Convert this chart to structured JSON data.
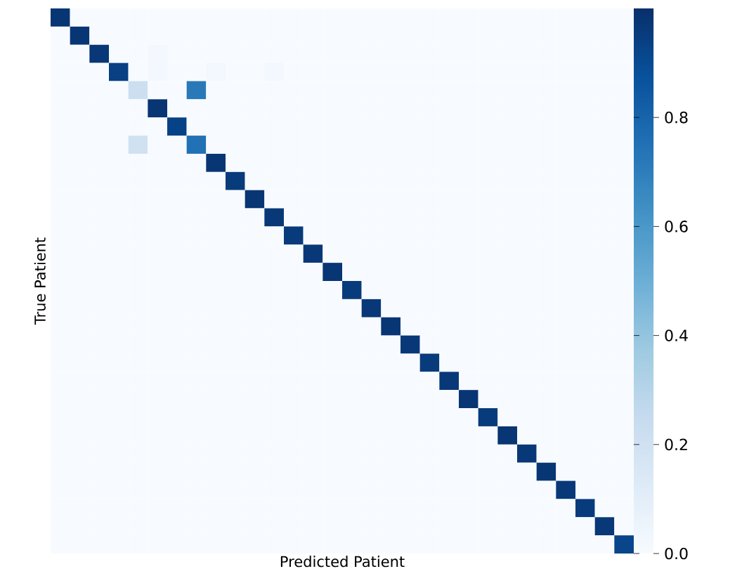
{
  "chart_data": {
    "type": "heatmap",
    "xlabel": "Predicted Patient",
    "ylabel": "True Patient",
    "categories": [
      null,
      null,
      null,
      null,
      null,
      null,
      null,
      null,
      null,
      null,
      null,
      null,
      null,
      null,
      null,
      null,
      null,
      null,
      null,
      null,
      null,
      null,
      null,
      null,
      null,
      null,
      null,
      null,
      null,
      null
    ],
    "y_categories": [
      null,
      null,
      null,
      null,
      null,
      null,
      null,
      null,
      null,
      null,
      null,
      null,
      null,
      null,
      null,
      null,
      null,
      null,
      null,
      null,
      null,
      null,
      null,
      null,
      null,
      null,
      null,
      null,
      null,
      null
    ],
    "tick_labels": false,
    "clim": [
      0,
      1
    ],
    "cticks": [
      {
        "value": 0,
        "label": "0.0"
      },
      {
        "value": 0.2,
        "label": "0.2"
      },
      {
        "value": 0.4,
        "label": "0.4"
      },
      {
        "value": 0.6,
        "label": "0.6"
      },
      {
        "value": 0.8,
        "label": "0.8"
      }
    ],
    "cells": [
      [
        0.98,
        0,
        0,
        0,
        0,
        0,
        0,
        0,
        0,
        0,
        0,
        0,
        0,
        0,
        0,
        0,
        0,
        0,
        0,
        0,
        0,
        0,
        0,
        0,
        0,
        0,
        0,
        0,
        0,
        0
      ],
      [
        0,
        0.98,
        0,
        0,
        0,
        0,
        0,
        0,
        0,
        0,
        0,
        0,
        0,
        0,
        0,
        0,
        0,
        0,
        0,
        0,
        0,
        0,
        0,
        0,
        0,
        0,
        0,
        0,
        0,
        0
      ],
      [
        0,
        0,
        0.97,
        0,
        0,
        0.02,
        0,
        0,
        0,
        0,
        0,
        0,
        0,
        0,
        0,
        0,
        0,
        0,
        0,
        0,
        0,
        0,
        0,
        0,
        0,
        0,
        0,
        0,
        0,
        0
      ],
      [
        0,
        0,
        0,
        0.94,
        0,
        0.02,
        0,
        0,
        0.02,
        0,
        0,
        0.02,
        0,
        0,
        0,
        0,
        0,
        0,
        0,
        0,
        0,
        0,
        0,
        0,
        0,
        0,
        0,
        0,
        0,
        0
      ],
      [
        0,
        0,
        0,
        0,
        0.22,
        0,
        0,
        0.72,
        0,
        0,
        0,
        0,
        0,
        0,
        0,
        0,
        0,
        0,
        0,
        0,
        0,
        0,
        0,
        0,
        0,
        0,
        0,
        0,
        0,
        0
      ],
      [
        0,
        0,
        0,
        0,
        0,
        0.98,
        0,
        0,
        0,
        0,
        0,
        0,
        0,
        0,
        0,
        0,
        0,
        0,
        0,
        0,
        0,
        0,
        0,
        0,
        0,
        0,
        0,
        0,
        0,
        0
      ],
      [
        0,
        0,
        0,
        0,
        0,
        0,
        0.93,
        0,
        0,
        0,
        0,
        0,
        0,
        0,
        0,
        0,
        0,
        0,
        0,
        0,
        0,
        0,
        0,
        0,
        0,
        0,
        0,
        0,
        0,
        0
      ],
      [
        0,
        0,
        0,
        0,
        0.2,
        0,
        0,
        0.75,
        0,
        0,
        0,
        0,
        0,
        0,
        0,
        0,
        0,
        0,
        0,
        0,
        0,
        0,
        0,
        0,
        0,
        0,
        0,
        0,
        0,
        0
      ],
      [
        0,
        0,
        0,
        0,
        0,
        0,
        0,
        0,
        0.98,
        0,
        0,
        0,
        0,
        0,
        0,
        0,
        0,
        0,
        0,
        0,
        0,
        0,
        0,
        0,
        0,
        0,
        0,
        0,
        0,
        0
      ],
      [
        0,
        0,
        0,
        0,
        0,
        0,
        0,
        0,
        0,
        0.96,
        0,
        0,
        0,
        0,
        0,
        0,
        0,
        0,
        0,
        0,
        0,
        0,
        0,
        0,
        0,
        0,
        0,
        0,
        0,
        0
      ],
      [
        0,
        0,
        0,
        0,
        0,
        0,
        0,
        0,
        0,
        0,
        0.98,
        0,
        0,
        0,
        0,
        0,
        0,
        0,
        0,
        0,
        0,
        0,
        0,
        0,
        0,
        0,
        0,
        0,
        0,
        0
      ],
      [
        0,
        0,
        0,
        0,
        0,
        0,
        0,
        0,
        0,
        0,
        0,
        0.97,
        0,
        0,
        0,
        0,
        0,
        0,
        0,
        0,
        0,
        0,
        0,
        0,
        0,
        0,
        0,
        0,
        0,
        0
      ],
      [
        0,
        0,
        0,
        0,
        0,
        0,
        0,
        0,
        0,
        0,
        0,
        0,
        0.96,
        0,
        0,
        0,
        0,
        0,
        0,
        0,
        0,
        0,
        0,
        0,
        0,
        0,
        0,
        0,
        0,
        0
      ],
      [
        0,
        0,
        0,
        0,
        0,
        0,
        0,
        0,
        0,
        0,
        0,
        0,
        0,
        0.97,
        0,
        0,
        0,
        0,
        0,
        0,
        0,
        0,
        0,
        0,
        0,
        0,
        0,
        0,
        0,
        0
      ],
      [
        0,
        0,
        0,
        0,
        0,
        0,
        0,
        0,
        0,
        0,
        0,
        0,
        0,
        0,
        0.98,
        0,
        0,
        0,
        0,
        0,
        0,
        0,
        0,
        0,
        0,
        0,
        0,
        0,
        0,
        0
      ],
      [
        0,
        0,
        0,
        0,
        0,
        0,
        0,
        0,
        0,
        0,
        0,
        0,
        0,
        0,
        0,
        0.96,
        0,
        0,
        0,
        0,
        0,
        0,
        0,
        0,
        0,
        0,
        0,
        0,
        0,
        0
      ],
      [
        0,
        0,
        0,
        0,
        0,
        0,
        0,
        0,
        0,
        0,
        0,
        0,
        0,
        0,
        0,
        0,
        0.97,
        0,
        0,
        0,
        0,
        0,
        0,
        0,
        0,
        0,
        0,
        0,
        0,
        0
      ],
      [
        0,
        0,
        0,
        0,
        0,
        0,
        0,
        0,
        0,
        0,
        0,
        0,
        0,
        0,
        0,
        0,
        0,
        0.98,
        0,
        0,
        0,
        0,
        0,
        0,
        0,
        0,
        0,
        0,
        0,
        0
      ],
      [
        0,
        0,
        0,
        0,
        0,
        0,
        0,
        0,
        0,
        0,
        0,
        0,
        0,
        0,
        0,
        0,
        0,
        0,
        0.97,
        0,
        0,
        0,
        0,
        0,
        0,
        0,
        0,
        0,
        0,
        0
      ],
      [
        0,
        0,
        0,
        0,
        0,
        0,
        0,
        0,
        0,
        0,
        0,
        0,
        0,
        0,
        0,
        0,
        0,
        0,
        0,
        0.96,
        0,
        0,
        0,
        0,
        0,
        0,
        0,
        0,
        0,
        0
      ],
      [
        0,
        0,
        0,
        0,
        0,
        0,
        0,
        0,
        0,
        0,
        0,
        0,
        0,
        0,
        0,
        0,
        0,
        0,
        0,
        0,
        0.97,
        0,
        0,
        0,
        0,
        0,
        0,
        0,
        0,
        0
      ],
      [
        0,
        0,
        0,
        0,
        0,
        0,
        0,
        0,
        0,
        0,
        0,
        0,
        0,
        0,
        0,
        0,
        0,
        0,
        0,
        0,
        0,
        0.98,
        0,
        0,
        0,
        0,
        0,
        0,
        0,
        0
      ],
      [
        0,
        0,
        0,
        0,
        0,
        0,
        0,
        0,
        0,
        0,
        0,
        0,
        0,
        0,
        0,
        0,
        0,
        0,
        0,
        0,
        0,
        0,
        0.96,
        0,
        0,
        0,
        0,
        0,
        0,
        0
      ],
      [
        0,
        0,
        0,
        0,
        0,
        0,
        0,
        0,
        0,
        0,
        0,
        0,
        0,
        0,
        0,
        0,
        0,
        0,
        0,
        0,
        0,
        0,
        0,
        0.98,
        0,
        0,
        0,
        0,
        0,
        0
      ],
      [
        0,
        0,
        0,
        0,
        0,
        0,
        0,
        0,
        0,
        0,
        0,
        0,
        0,
        0,
        0,
        0,
        0,
        0,
        0,
        0,
        0,
        0,
        0,
        0,
        0.97,
        0,
        0,
        0,
        0,
        0
      ],
      [
        0,
        0,
        0,
        0,
        0,
        0,
        0,
        0,
        0,
        0,
        0,
        0,
        0,
        0,
        0,
        0,
        0,
        0,
        0,
        0,
        0,
        0,
        0,
        0,
        0,
        0.98,
        0,
        0,
        0,
        0
      ],
      [
        0,
        0,
        0,
        0,
        0,
        0,
        0,
        0,
        0,
        0,
        0,
        0,
        0,
        0,
        0,
        0,
        0,
        0,
        0,
        0,
        0,
        0,
        0,
        0,
        0,
        0,
        0.97,
        0,
        0,
        0
      ],
      [
        0,
        0,
        0,
        0,
        0,
        0,
        0,
        0,
        0,
        0,
        0,
        0,
        0,
        0,
        0,
        0,
        0,
        0,
        0,
        0,
        0,
        0,
        0,
        0,
        0,
        0,
        0,
        0.96,
        0,
        0
      ],
      [
        0,
        0,
        0,
        0,
        0,
        0,
        0,
        0,
        0,
        0,
        0,
        0,
        0,
        0,
        0,
        0,
        0,
        0,
        0,
        0,
        0,
        0,
        0,
        0,
        0,
        0,
        0,
        0,
        0.97,
        0
      ],
      [
        0,
        0,
        0,
        0,
        0,
        0,
        0,
        0,
        0,
        0,
        0,
        0,
        0,
        0,
        0,
        0,
        0,
        0,
        0,
        0,
        0,
        0,
        0,
        0,
        0,
        0,
        0,
        0,
        0,
        0.92
      ]
    ]
  }
}
